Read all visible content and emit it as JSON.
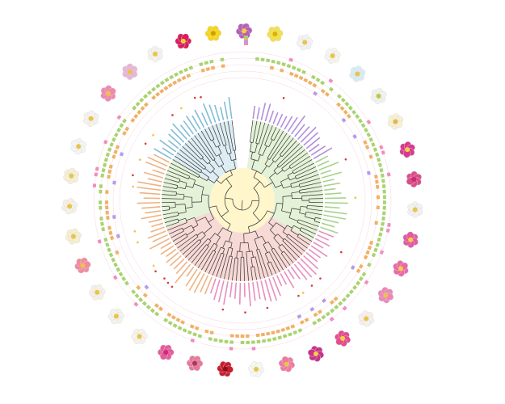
{
  "colors": {
    "background": "#ffffff",
    "clade_pink": "#f4c9c4",
    "clade_green": "#d8ecc8",
    "clade_blue": "#cfe6ee",
    "clade_yellow": "#fff6cc",
    "ring_green": "#a8d46f",
    "ring_orange": "#f2b066",
    "ring_purple": "#b79be8",
    "ring_pink": "#f28cc0",
    "label_pink": "#e06aa8",
    "label_orange": "#e99a5a",
    "label_blue": "#5aa8c8",
    "label_green": "#8cc46a",
    "label_purple": "#9a6ad0",
    "marker_red": "#d83a3a",
    "marker_yellow": "#f2c23a"
  },
  "legend": {
    "items": [
      {
        "label": "",
        "color": "#a8d46f"
      },
      {
        "label": "",
        "color": "#f2b066"
      },
      {
        "label": "",
        "color": "#b79be8"
      },
      {
        "label": "",
        "color": "#f28cc0"
      }
    ]
  },
  "flowers": [
    {
      "icon": "rose-flower-icon",
      "petal": "#d81e5b",
      "center": "#f4d03f"
    },
    {
      "icon": "yellow-rose-flower-icon",
      "petal": "#f7d51d",
      "center": "#c9a200"
    },
    {
      "icon": "purple-rose-flower-icon",
      "petal": "#b65fb5",
      "center": "#f4d03f"
    },
    {
      "icon": "yellow-rose-flower-icon",
      "petal": "#f3e04a",
      "center": "#d6b400"
    },
    {
      "icon": "white-rose-flower-icon",
      "petal": "#f2f2f2",
      "center": "#e9c44a"
    },
    {
      "icon": "white-rose-flower-icon",
      "petal": "#f5f5f0",
      "center": "#e9c44a"
    },
    {
      "icon": "pale-blue-rose-flower-icon",
      "petal": "#d9ebf5",
      "center": "#e9c44a"
    },
    {
      "icon": "white-rose-flower-icon",
      "petal": "#eef3ee",
      "center": "#cfc04a"
    },
    {
      "icon": "cream-rose-flower-icon",
      "petal": "#f7f0d2",
      "center": "#e1b84a"
    },
    {
      "icon": "magenta-rose-flower-icon",
      "petal": "#d8398f",
      "center": "#f4d03f"
    },
    {
      "icon": "magenta-rose-flower-icon",
      "petal": "#dc4c8a",
      "center": "#c52e6f"
    },
    {
      "icon": "white-rose-flower-icon",
      "petal": "#f1f1f1",
      "center": "#e9c44a"
    },
    {
      "icon": "pink-rose-flower-icon",
      "petal": "#e25aa2",
      "center": "#f4d03f"
    },
    {
      "icon": "pink-rose-flower-icon",
      "petal": "#ea6aa8",
      "center": "#f4d03f"
    },
    {
      "icon": "pink-rose-flower-icon",
      "petal": "#ec87b8",
      "center": "#e9c44a"
    },
    {
      "icon": "white-rose-flower-icon",
      "petal": "#f4f0ee",
      "center": "#e9c44a"
    },
    {
      "icon": "pink-rose-flower-icon",
      "petal": "#e64a8f",
      "center": "#f4d03f"
    },
    {
      "icon": "magenta-rose-flower-icon",
      "petal": "#c8338a",
      "center": "#f4d03f"
    },
    {
      "icon": "pink-rose-flower-icon",
      "petal": "#ef7aa0",
      "center": "#e9c44a"
    },
    {
      "icon": "white-rose-flower-icon",
      "petal": "#f6f6f2",
      "center": "#e9c44a"
    },
    {
      "icon": "red-rose-flower-icon",
      "petal": "#c81e2e",
      "center": "#8a1020"
    },
    {
      "icon": "pink-rose-flower-icon",
      "petal": "#e8799a",
      "center": "#a63a5a"
    },
    {
      "icon": "pink-rose-flower-icon",
      "petal": "#e85a9a",
      "center": "#c4307a"
    },
    {
      "icon": "white-rose-flower-icon",
      "petal": "#f6f3ea",
      "center": "#e9c44a"
    },
    {
      "icon": "white-rose-flower-icon",
      "petal": "#f4f2ec",
      "center": "#e9c44a"
    },
    {
      "icon": "white-rose-flower-icon",
      "petal": "#f6f0e6",
      "center": "#e9c44a"
    },
    {
      "icon": "pink-rose-flower-icon",
      "petal": "#f28aa0",
      "center": "#e9c44a"
    },
    {
      "icon": "cream-rose-flower-icon",
      "petal": "#f6eed0",
      "center": "#e9c44a"
    },
    {
      "icon": "white-rose-flower-icon",
      "petal": "#f4f0e8",
      "center": "#e9c44a"
    },
    {
      "icon": "cream-rose-flower-icon",
      "petal": "#f6efd8",
      "center": "#e9c44a"
    },
    {
      "icon": "white-rose-flower-icon",
      "petal": "#f4f4f4",
      "center": "#e9c44a"
    },
    {
      "icon": "white-rose-flower-icon",
      "petal": "#f5f2ee",
      "center": "#e9c44a"
    },
    {
      "icon": "pink-rose-flower-icon",
      "petal": "#ef88b0",
      "center": "#e9c44a"
    },
    {
      "icon": "lilac-rose-flower-icon",
      "petal": "#e6b6d8",
      "center": "#e9c44a"
    },
    {
      "icon": "white-rose-flower-icon",
      "petal": "#f2f2ee",
      "center": "#e9c44a"
    }
  ]
}
